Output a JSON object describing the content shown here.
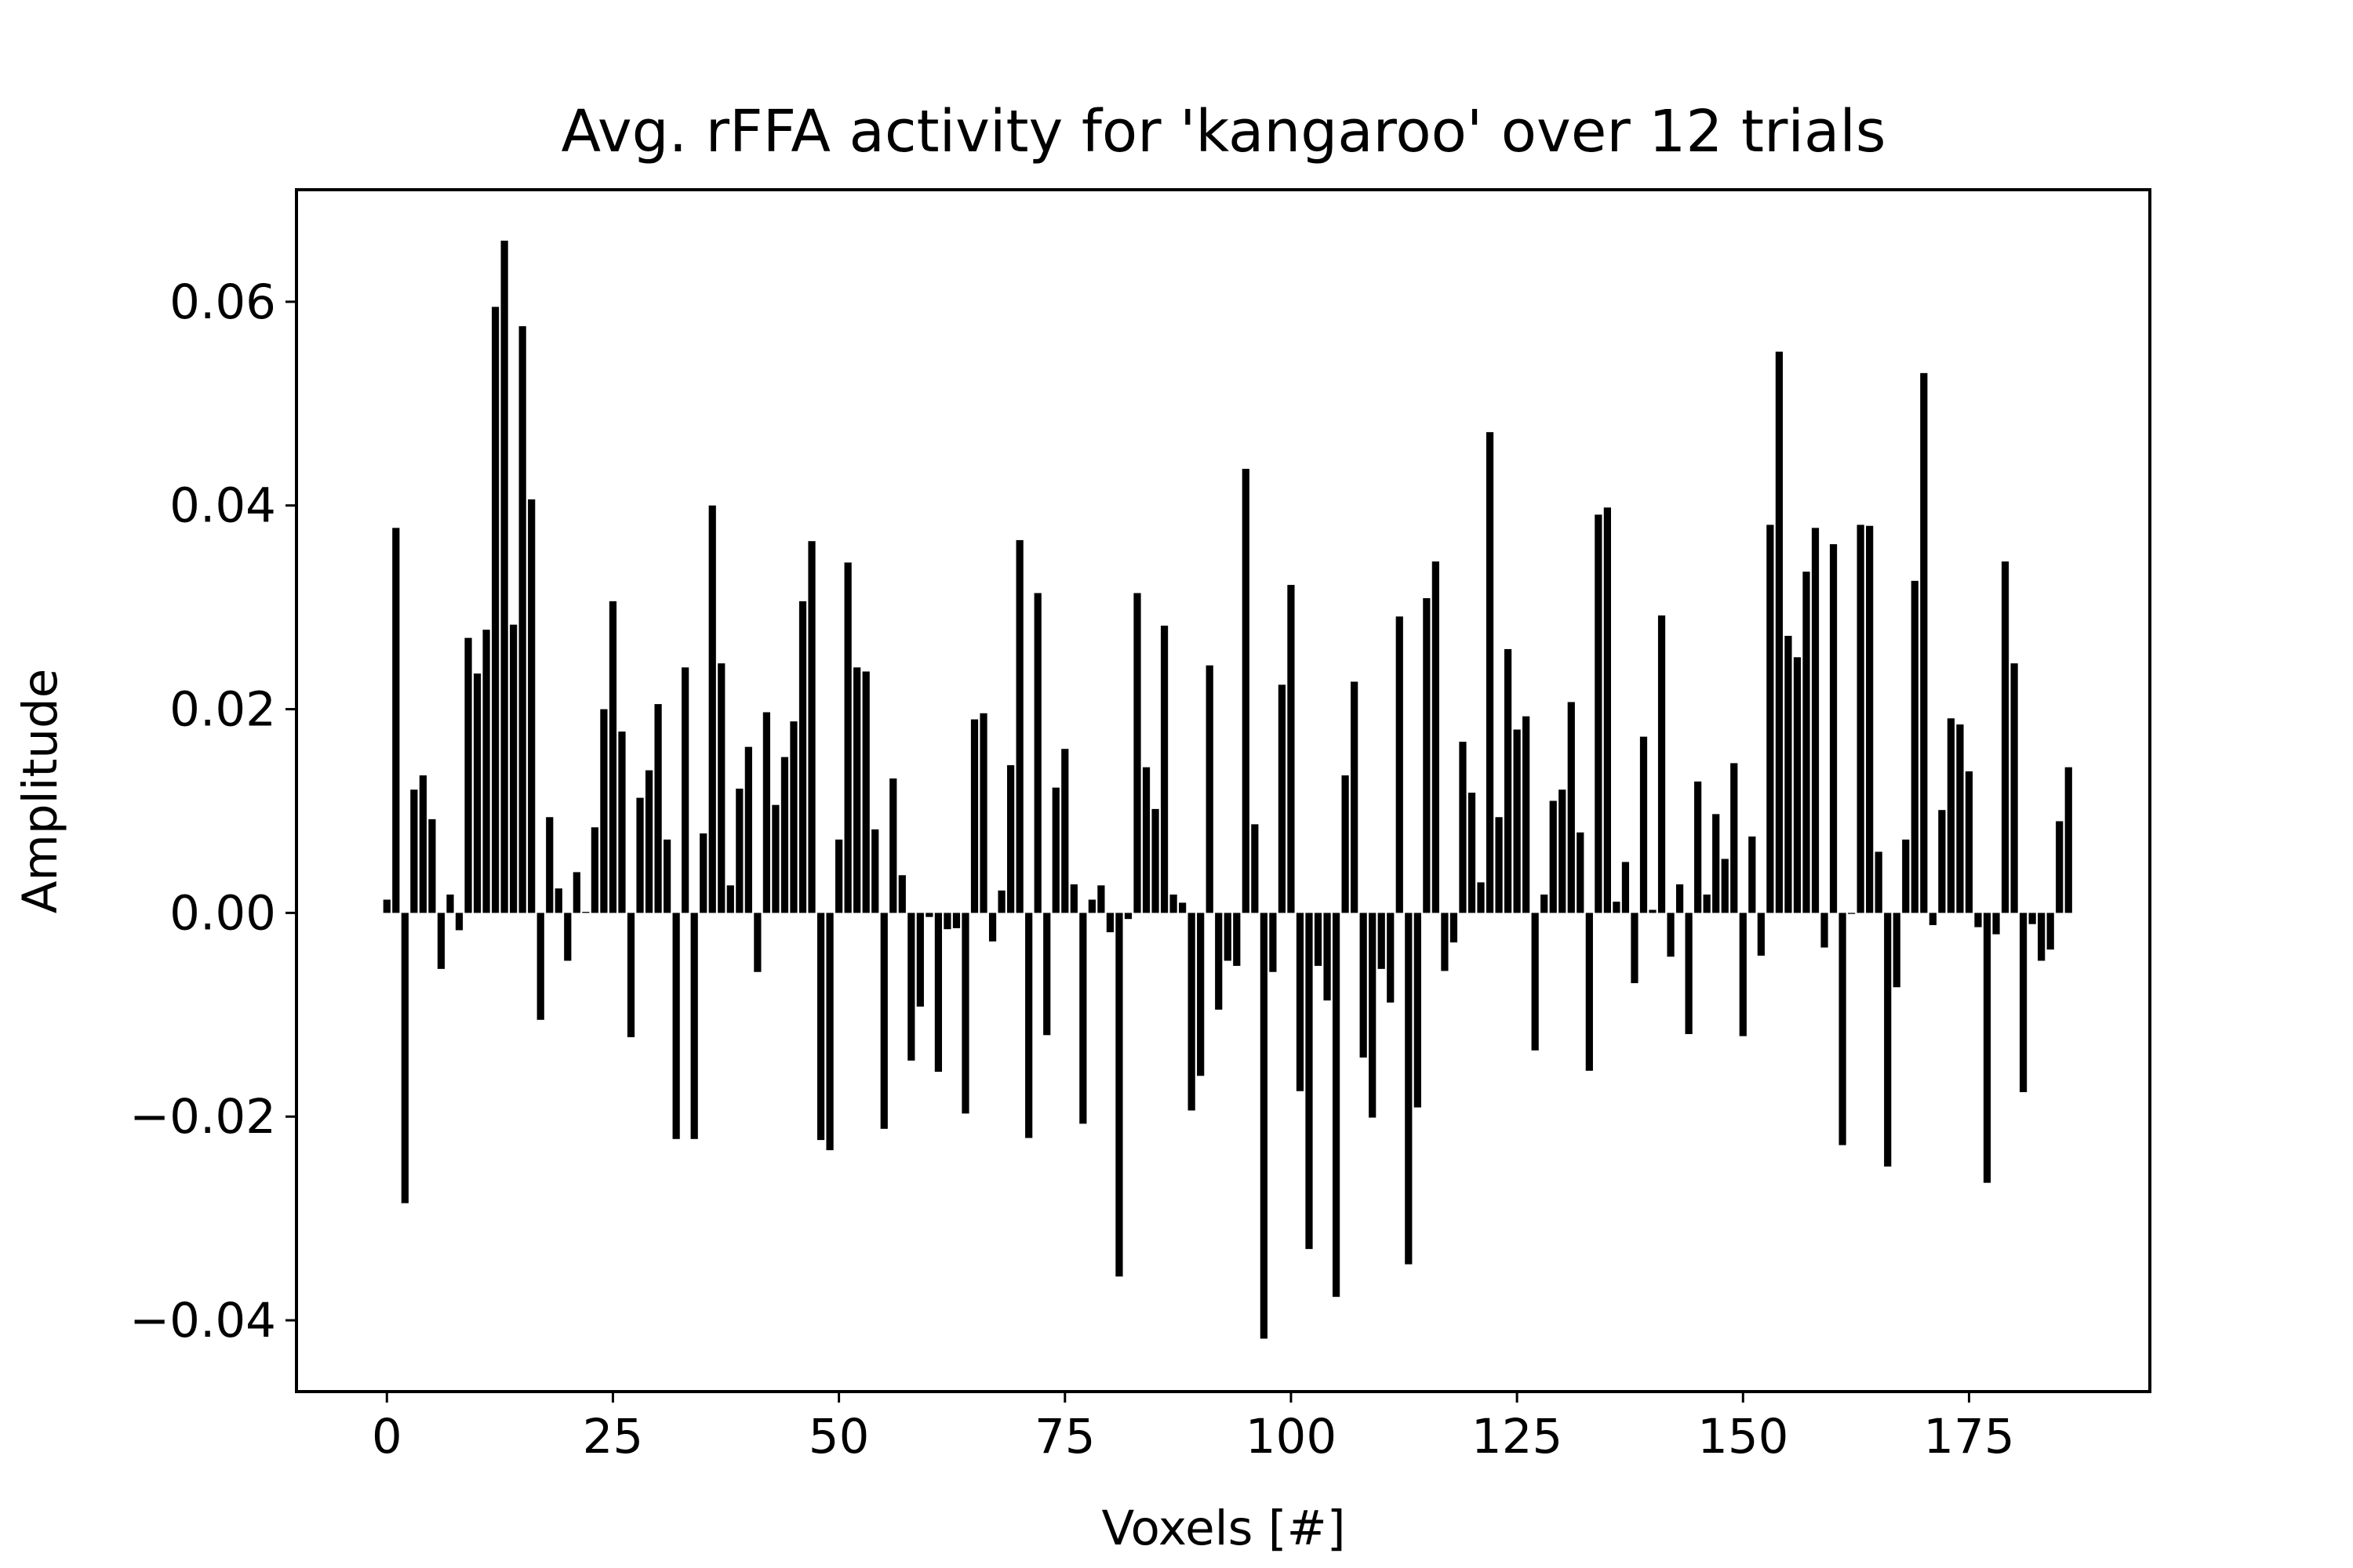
{
  "chart_data": {
    "type": "bar",
    "title": "Avg. rFFA activity for 'kangaroo' over 12 trials",
    "xlabel": "Voxels [#]",
    "ylabel": "Amplitude",
    "xlim": [
      -10,
      195
    ],
    "ylim": [
      -0.047,
      0.071
    ],
    "x_ticks": [
      0,
      25,
      50,
      75,
      100,
      125,
      150,
      175
    ],
    "x_tick_labels": [
      "0",
      "25",
      "50",
      "75",
      "100",
      "125",
      "150",
      "175"
    ],
    "y_ticks": [
      -0.04,
      -0.02,
      0.0,
      0.02,
      0.04,
      0.06
    ],
    "y_tick_labels": [
      "−0.04",
      "−0.02",
      "0.00",
      "0.02",
      "0.04",
      "0.06"
    ],
    "grid": false,
    "legend": "none",
    "bar_color": "#000000",
    "x": [
      0,
      1,
      2,
      3,
      4,
      5,
      6,
      7,
      8,
      9,
      10,
      11,
      12,
      13,
      14,
      15,
      16,
      17,
      18,
      19,
      20,
      21,
      22,
      23,
      24,
      25,
      26,
      27,
      28,
      29,
      30,
      31,
      32,
      33,
      34,
      35,
      36,
      37,
      38,
      39,
      40,
      41,
      42,
      43,
      44,
      45,
      46,
      47,
      48,
      49,
      50,
      51,
      52,
      53,
      54,
      55,
      56,
      57,
      58,
      59,
      60,
      61,
      62,
      63,
      64,
      65,
      66,
      67,
      68,
      69,
      70,
      71,
      72,
      73,
      74,
      75,
      76,
      77,
      78,
      79,
      80,
      81,
      82,
      83,
      84,
      85,
      86,
      87,
      88,
      89,
      90,
      91,
      92,
      93,
      94,
      95,
      96,
      97,
      98,
      99,
      100,
      101,
      102,
      103,
      104,
      105,
      106,
      107,
      108,
      109,
      110,
      111,
      112,
      113,
      114,
      115,
      116,
      117,
      118,
      119,
      120,
      121,
      122,
      123,
      124,
      125,
      126,
      127,
      128,
      129,
      130,
      131,
      132,
      133,
      134,
      135,
      136,
      137,
      138,
      139,
      140,
      141,
      142,
      143,
      144,
      145,
      146,
      147,
      148,
      149,
      150,
      151,
      152,
      153,
      154,
      155,
      156,
      157,
      158,
      159,
      160,
      161,
      162,
      163,
      164,
      165,
      166,
      167,
      168,
      169,
      170,
      171,
      172,
      173,
      174,
      175,
      176,
      177,
      178,
      179,
      180,
      181,
      182,
      183,
      184,
      185,
      186
    ],
    "values": [
      0.0013,
      0.0378,
      -0.0285,
      0.0121,
      0.0135,
      0.0092,
      -0.0055,
      0.0018,
      -0.0017,
      0.027,
      0.0235,
      0.0278,
      0.0595,
      0.066,
      0.0283,
      0.0576,
      0.0406,
      -0.0105,
      0.0094,
      0.0024,
      -0.0047,
      0.004,
      0.0001,
      0.0084,
      0.02,
      0.0306,
      0.0178,
      -0.0122,
      0.0113,
      0.014,
      0.0205,
      0.0072,
      -0.0222,
      0.0241,
      -0.0222,
      0.0078,
      0.04,
      0.0245,
      0.0027,
      0.0122,
      0.0163,
      -0.0058,
      0.0197,
      0.0106,
      0.0153,
      0.0188,
      0.0306,
      0.0365,
      -0.0223,
      -0.0233,
      0.0072,
      0.0344,
      0.0241,
      0.0237,
      0.0082,
      -0.0212,
      0.0132,
      0.0037,
      -0.0145,
      -0.0092,
      -0.0004,
      -0.0156,
      -0.0016,
      -0.0015,
      -0.0197,
      0.019,
      0.0196,
      -0.0028,
      0.0022,
      0.0145,
      0.0366,
      -0.0221,
      0.0314,
      -0.012,
      0.0123,
      0.0161,
      0.0028,
      -0.0207,
      0.0013,
      0.0027,
      -0.0019,
      -0.0357,
      -0.0006,
      0.0314,
      0.0143,
      0.0102,
      0.0282,
      0.0018,
      0.001,
      -0.0194,
      -0.016,
      0.0243,
      -0.0095,
      -0.0047,
      -0.0052,
      0.0436,
      0.0087,
      -0.0418,
      -0.0058,
      0.0224,
      0.0322,
      -0.0175,
      -0.033,
      -0.0052,
      -0.0086,
      -0.0377,
      0.0135,
      0.0227,
      -0.0142,
      -0.0201,
      -0.0055,
      -0.0088,
      0.0291,
      -0.0345,
      -0.0191,
      0.0309,
      0.0345,
      -0.0057,
      -0.0029,
      0.0168,
      0.0118,
      0.003,
      0.0472,
      0.0094,
      0.0259,
      0.018,
      0.0193,
      -0.0135,
      0.0018,
      0.011,
      0.0121,
      0.0207,
      0.0079,
      -0.0155,
      0.0391,
      0.0398,
      0.0011,
      0.005,
      -0.0069,
      0.0173,
      0.0003,
      0.0292,
      -0.0043,
      0.0028,
      -0.0119,
      0.0129,
      0.0018,
      0.0097,
      0.0053,
      0.0147,
      -0.0121,
      0.0075,
      -0.0042,
      0.0381,
      0.0551,
      0.0272,
      0.0251,
      0.0335,
      0.0378,
      -0.0034,
      0.0362,
      -0.0228,
      -0.0001,
      0.0381,
      0.038,
      0.006,
      -0.0249,
      -0.0073,
      0.0072,
      0.0326,
      0.053,
      -0.0012,
      0.0101,
      0.0191,
      0.0185,
      0.0139,
      -0.0014,
      -0.0265,
      -0.0021,
      0.0345,
      0.0245,
      -0.0176,
      -0.0011,
      -0.0047,
      -0.0036,
      0.009,
      0.0143
    ]
  }
}
